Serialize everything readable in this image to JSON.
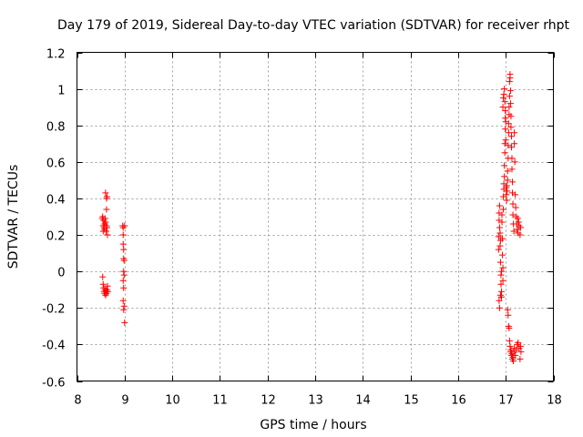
{
  "chart_data": {
    "type": "scatter",
    "title": "Day 179 of 2019, Sidereal Day-to-day VTEC variation (SDTVAR) for receiver rhpt",
    "xlabel": "GPS time / hours",
    "ylabel": "SDTVAR / TECUs",
    "xlim": [
      8,
      18
    ],
    "ylim": [
      -0.6,
      1.2
    ],
    "xticks": [
      8,
      9,
      10,
      11,
      12,
      13,
      14,
      15,
      16,
      17,
      18
    ],
    "xtick_labels": [
      "8",
      "9",
      "10",
      "11",
      "12",
      "13",
      "14",
      "15",
      "16",
      "17",
      "18"
    ],
    "yticks": [
      -0.6,
      -0.4,
      -0.2,
      0,
      0.2,
      0.4,
      0.6,
      0.8,
      1,
      1.2
    ],
    "ytick_labels": [
      "-0.6",
      "-0.4",
      "-0.2",
      "0",
      "0.2",
      "0.4",
      "0.6",
      "0.8",
      "1",
      "1.2"
    ],
    "grid": true,
    "marker": "+",
    "color": "#ff0000",
    "series": [
      {
        "name": "SDTVAR",
        "points": [
          [
            8.53,
            0.29
          ],
          [
            8.54,
            0.3
          ],
          [
            8.55,
            0.25
          ],
          [
            8.55,
            0.22
          ],
          [
            8.56,
            0.28
          ],
          [
            8.57,
            0.24
          ],
          [
            8.58,
            0.23
          ],
          [
            8.58,
            0.26
          ],
          [
            8.59,
            0.29
          ],
          [
            8.6,
            0.27
          ],
          [
            8.61,
            0.22
          ],
          [
            8.62,
            0.25
          ],
          [
            8.62,
            0.34
          ],
          [
            8.6,
            0.43
          ],
          [
            8.62,
            0.4
          ],
          [
            8.63,
            0.41
          ],
          [
            8.63,
            0.24
          ],
          [
            8.64,
            0.2
          ],
          [
            8.54,
            -0.03
          ],
          [
            8.55,
            -0.07
          ],
          [
            8.56,
            -0.09
          ],
          [
            8.57,
            -0.11
          ],
          [
            8.58,
            -0.12
          ],
          [
            8.59,
            -0.1
          ],
          [
            8.6,
            -0.13
          ],
          [
            8.61,
            -0.11
          ],
          [
            8.62,
            -0.12
          ],
          [
            8.63,
            -0.1
          ],
          [
            8.64,
            -0.08
          ],
          [
            8.65,
            -0.11
          ],
          [
            8.96,
            0.25
          ],
          [
            8.97,
            0.24
          ],
          [
            8.97,
            0.2
          ],
          [
            8.97,
            0.15
          ],
          [
            8.98,
            0.12
          ],
          [
            8.98,
            0.07
          ],
          [
            8.99,
            0.06
          ],
          [
            9.0,
            0.25
          ],
          [
            8.98,
            0.0
          ],
          [
            8.99,
            -0.02
          ],
          [
            8.97,
            -0.05
          ],
          [
            8.98,
            -0.09
          ],
          [
            8.97,
            -0.16
          ],
          [
            8.99,
            -0.19
          ],
          [
            8.98,
            -0.21
          ],
          [
            9.0,
            -0.28
          ],
          [
            16.85,
            0.19
          ],
          [
            16.85,
            0.12
          ],
          [
            16.86,
            0.28
          ],
          [
            16.86,
            0.32
          ],
          [
            16.87,
            0.24
          ],
          [
            16.87,
            0.36
          ],
          [
            16.88,
            0.21
          ],
          [
            16.88,
            0.14
          ],
          [
            16.89,
            0.17
          ],
          [
            16.89,
            0.05
          ],
          [
            16.9,
            -0.02
          ],
          [
            16.9,
            -0.07
          ],
          [
            16.91,
            -0.11
          ],
          [
            16.91,
            -0.14
          ],
          [
            16.92,
            0.27
          ],
          [
            16.92,
            0.31
          ],
          [
            16.86,
            -0.16
          ],
          [
            16.87,
            -0.2
          ],
          [
            16.89,
            -0.13
          ],
          [
            16.91,
            0.0
          ],
          [
            16.93,
            0.18
          ],
          [
            16.93,
            0.09
          ],
          [
            16.94,
            0.02
          ],
          [
            16.94,
            -0.05
          ],
          [
            16.95,
            0.34
          ],
          [
            16.95,
            0.41
          ],
          [
            16.96,
            0.45
          ],
          [
            16.96,
            0.48
          ],
          [
            16.97,
            0.52
          ],
          [
            16.97,
            0.58
          ],
          [
            16.98,
            0.65
          ],
          [
            16.98,
            0.7
          ],
          [
            16.99,
            0.78
          ],
          [
            16.99,
            0.84
          ],
          [
            16.94,
            0.9
          ],
          [
            16.95,
            0.95
          ],
          [
            16.96,
            0.97
          ],
          [
            16.97,
            1.0
          ],
          [
            16.98,
            0.93
          ],
          [
            16.99,
            0.88
          ],
          [
            17.0,
            0.82
          ],
          [
            17.0,
            0.72
          ],
          [
            17.01,
            0.46
          ],
          [
            17.01,
            0.42
          ],
          [
            17.02,
            0.47
          ],
          [
            17.02,
            0.39
          ],
          [
            17.03,
            0.44
          ],
          [
            17.04,
            0.5
          ],
          [
            17.04,
            0.55
          ],
          [
            17.05,
            0.62
          ],
          [
            17.05,
            0.69
          ],
          [
            17.06,
            0.76
          ],
          [
            17.06,
            0.81
          ],
          [
            17.07,
            0.86
          ],
          [
            17.07,
            0.9
          ],
          [
            17.08,
            0.96
          ],
          [
            17.08,
            1.04
          ],
          [
            17.09,
            1.08
          ],
          [
            17.09,
            1.06
          ],
          [
            17.1,
            0.99
          ],
          [
            17.1,
            0.92
          ],
          [
            17.11,
            0.85
          ],
          [
            17.11,
            0.79
          ],
          [
            17.12,
            0.74
          ],
          [
            17.12,
            0.68
          ],
          [
            17.13,
            0.62
          ],
          [
            17.13,
            0.56
          ],
          [
            17.14,
            0.49
          ],
          [
            17.14,
            0.43
          ],
          [
            17.15,
            0.37
          ],
          [
            17.15,
            0.31
          ],
          [
            17.16,
            0.26
          ],
          [
            17.17,
            0.22
          ],
          [
            17.18,
            0.7
          ],
          [
            17.18,
            0.76
          ],
          [
            17.19,
            0.6
          ],
          [
            17.2,
            0.42
          ],
          [
            17.21,
            0.35
          ],
          [
            17.22,
            0.3
          ],
          [
            17.23,
            0.26
          ],
          [
            17.24,
            0.23
          ],
          [
            17.25,
            0.29
          ],
          [
            17.26,
            0.21
          ],
          [
            17.27,
            0.27
          ],
          [
            17.28,
            0.25
          ],
          [
            17.3,
            0.2
          ],
          [
            17.31,
            0.24
          ],
          [
            17.04,
            -0.21
          ],
          [
            17.05,
            -0.24
          ],
          [
            17.06,
            -0.3
          ],
          [
            17.07,
            -0.31
          ],
          [
            17.08,
            -0.38
          ],
          [
            17.09,
            -0.41
          ],
          [
            17.1,
            -0.44
          ],
          [
            17.11,
            -0.43
          ],
          [
            17.12,
            -0.46
          ],
          [
            17.13,
            -0.45
          ],
          [
            17.14,
            -0.48
          ],
          [
            17.15,
            -0.47
          ],
          [
            17.16,
            -0.49
          ],
          [
            17.17,
            -0.44
          ],
          [
            17.18,
            -0.42
          ],
          [
            17.2,
            -0.46
          ],
          [
            17.22,
            -0.43
          ],
          [
            17.24,
            -0.4
          ],
          [
            17.26,
            -0.39
          ],
          [
            17.28,
            -0.42
          ],
          [
            17.3,
            -0.48
          ],
          [
            17.31,
            -0.41
          ],
          [
            17.32,
            -0.44
          ]
        ]
      }
    ]
  }
}
